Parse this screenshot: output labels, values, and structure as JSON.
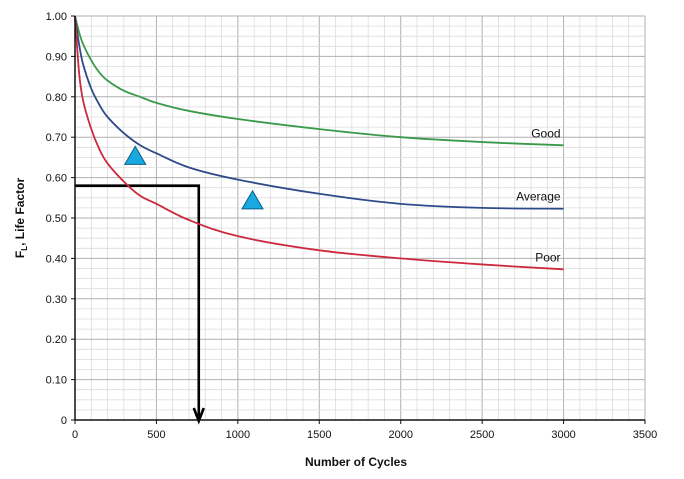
{
  "chart_data": {
    "type": "line",
    "title": "",
    "xlabel": "Number of Cycles",
    "ylabel_main": "F",
    "ylabel_sub": "L",
    "ylabel_rest": ", Life Factor",
    "xlim": [
      0,
      3500
    ],
    "ylim": [
      0,
      1.0
    ],
    "x_ticks": [
      0,
      500,
      1000,
      1500,
      2000,
      2500,
      3000,
      3500
    ],
    "x_tick_labels": [
      "0",
      "500",
      "1000",
      "1500",
      "2000",
      "2500",
      "3000",
      "3500"
    ],
    "y_ticks": [
      0,
      0.1,
      0.2,
      0.3,
      0.4,
      0.5,
      0.6,
      0.7,
      0.8,
      0.9,
      1.0
    ],
    "y_tick_labels": [
      "0",
      "0.10",
      "0.20",
      "0.30",
      "0.40",
      "0.50",
      "0.60",
      "0.70",
      "0.80",
      "0.90",
      "1.00"
    ],
    "grid": true,
    "series": [
      {
        "name": "Good",
        "color": "#3a9a4a",
        "x": [
          0,
          25,
          50,
          100,
          150,
          200,
          300,
          400,
          500,
          700,
          1000,
          1500,
          2000,
          2500,
          3000
        ],
        "y": [
          1.0,
          0.96,
          0.93,
          0.89,
          0.86,
          0.84,
          0.815,
          0.8,
          0.785,
          0.765,
          0.745,
          0.72,
          0.7,
          0.688,
          0.68
        ]
      },
      {
        "name": "Average",
        "color": "#2f4a8a",
        "x": [
          0,
          25,
          50,
          100,
          150,
          200,
          300,
          400,
          500,
          700,
          1000,
          1500,
          2000,
          2500,
          3000
        ],
        "y": [
          1.0,
          0.93,
          0.88,
          0.82,
          0.78,
          0.75,
          0.71,
          0.68,
          0.66,
          0.625,
          0.595,
          0.56,
          0.535,
          0.525,
          0.523
        ]
      },
      {
        "name": "Poor",
        "color": "#cc2a3c",
        "x": [
          0,
          25,
          50,
          100,
          150,
          200,
          300,
          400,
          500,
          700,
          1000,
          1500,
          2000,
          2500,
          3000
        ],
        "y": [
          1.0,
          0.86,
          0.79,
          0.72,
          0.67,
          0.635,
          0.59,
          0.555,
          0.535,
          0.495,
          0.455,
          0.42,
          0.4,
          0.385,
          0.373
        ]
      }
    ],
    "markers": [
      {
        "shape": "triangle",
        "color": "#19a9e0",
        "x": 370,
        "y": 0.655
      },
      {
        "shape": "triangle",
        "color": "#19a9e0",
        "x": 1090,
        "y": 0.545
      }
    ],
    "reference_path": {
      "color": "#000000",
      "points": [
        [
          0,
          0.58
        ],
        [
          760,
          0.58
        ],
        [
          760,
          0
        ]
      ]
    }
  }
}
